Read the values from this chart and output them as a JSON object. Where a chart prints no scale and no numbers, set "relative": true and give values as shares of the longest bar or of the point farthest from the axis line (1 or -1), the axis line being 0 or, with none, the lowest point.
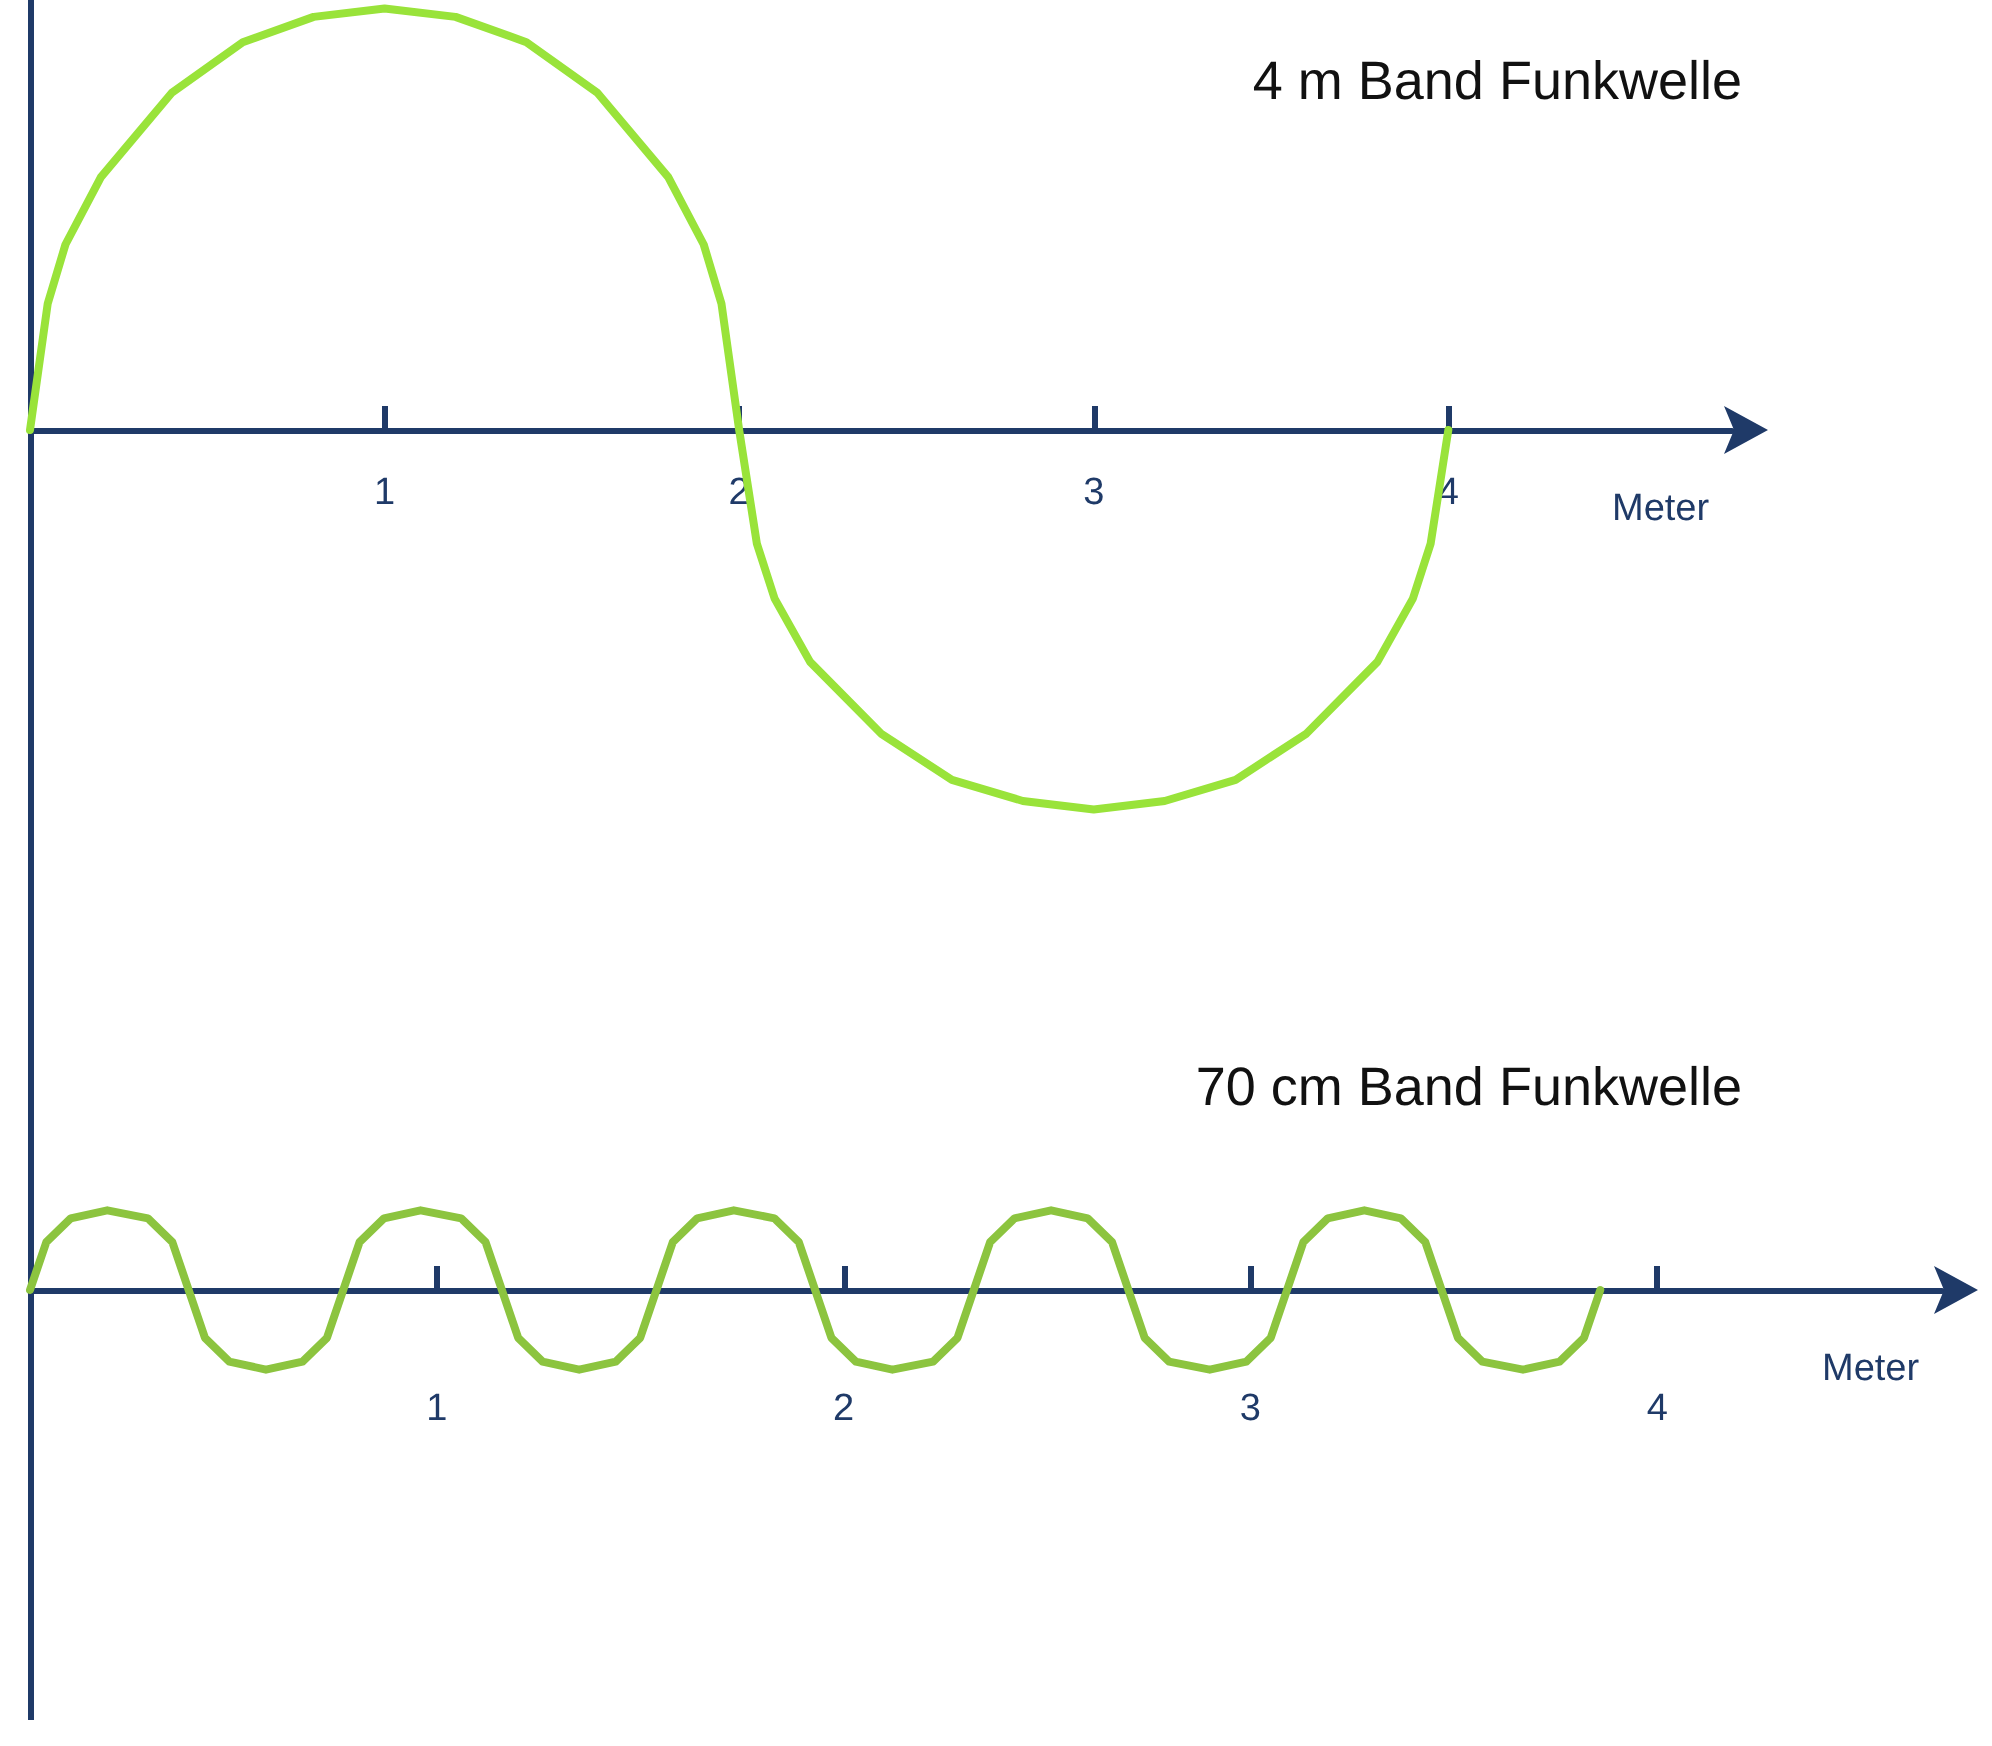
{
  "chart_data": [
    {
      "type": "line",
      "title": "4 m Band Funkwelle",
      "xlabel": "Meter",
      "relative": true,
      "xlim": [
        0,
        4.8
      ],
      "xticks": [
        1,
        2,
        3,
        4
      ],
      "marker": "none",
      "line_style": "solid",
      "series": [
        {
          "color": "#99e33a",
          "x": [
            0,
            0.05,
            0.1,
            0.2,
            0.4,
            0.6,
            0.8,
            1,
            1.2,
            1.4,
            1.6,
            1.8,
            1.9,
            1.95,
            2,
            2.05,
            2.1,
            2.2,
            2.4,
            2.6,
            2.8,
            3,
            3.2,
            3.4,
            3.6,
            3.8,
            3.9,
            3.95,
            4
          ],
          "values": [
            0,
            0.3,
            0.44,
            0.6,
            0.8,
            0.92,
            0.98,
            1,
            0.98,
            0.92,
            0.8,
            0.6,
            0.44,
            0.3,
            0,
            -0.27,
            -0.4,
            -0.55,
            -0.72,
            -0.83,
            -0.88,
            -0.9,
            -0.88,
            -0.83,
            -0.72,
            -0.55,
            -0.4,
            -0.27,
            0
          ]
        }
      ]
    },
    {
      "type": "line",
      "title": "70 cm Band Funkwelle",
      "xlabel": "Meter",
      "relative": true,
      "xlim": [
        0,
        4.7
      ],
      "xticks": [
        1,
        2,
        3,
        4
      ],
      "marker": "none",
      "line_style": "solid",
      "series": [
        {
          "color": "#8cc43f",
          "x": [
            0,
            0.04,
            0.1,
            0.19,
            0.29,
            0.35,
            0.39,
            0.43,
            0.49,
            0.58,
            0.67,
            0.73,
            0.77,
            0.81,
            0.87,
            0.96,
            1.06,
            1.12,
            1.16,
            1.2,
            1.26,
            1.35,
            1.44,
            1.5,
            1.54,
            1.58,
            1.64,
            1.73,
            1.83,
            1.89,
            1.93,
            1.97,
            2.03,
            2.12,
            2.22,
            2.28,
            2.32,
            2.36,
            2.42,
            2.51,
            2.6,
            2.66,
            2.7,
            2.74,
            2.8,
            2.9,
            2.99,
            3.05,
            3.09,
            3.13,
            3.19,
            3.28,
            3.37,
            3.43,
            3.47,
            3.51,
            3.57,
            3.67,
            3.76,
            3.82,
            3.86
          ],
          "values": [
            0,
            0.6,
            0.9,
            1,
            0.9,
            0.6,
            0,
            -0.6,
            -0.9,
            -1,
            -0.9,
            -0.6,
            0,
            0.6,
            0.9,
            1,
            0.9,
            0.6,
            0,
            -0.6,
            -0.9,
            -1,
            -0.9,
            -0.6,
            0,
            0.6,
            0.9,
            1,
            0.9,
            0.6,
            0,
            -0.6,
            -0.9,
            -1,
            -0.9,
            -0.6,
            0,
            0.6,
            0.9,
            1,
            0.9,
            0.6,
            0,
            -0.6,
            -0.9,
            -1,
            -0.9,
            -0.6,
            0,
            0.6,
            0.9,
            1,
            0.9,
            0.6,
            0,
            -0.6,
            -0.9,
            -1,
            -0.9,
            -0.6,
            0
          ]
        }
      ]
    }
  ]
}
